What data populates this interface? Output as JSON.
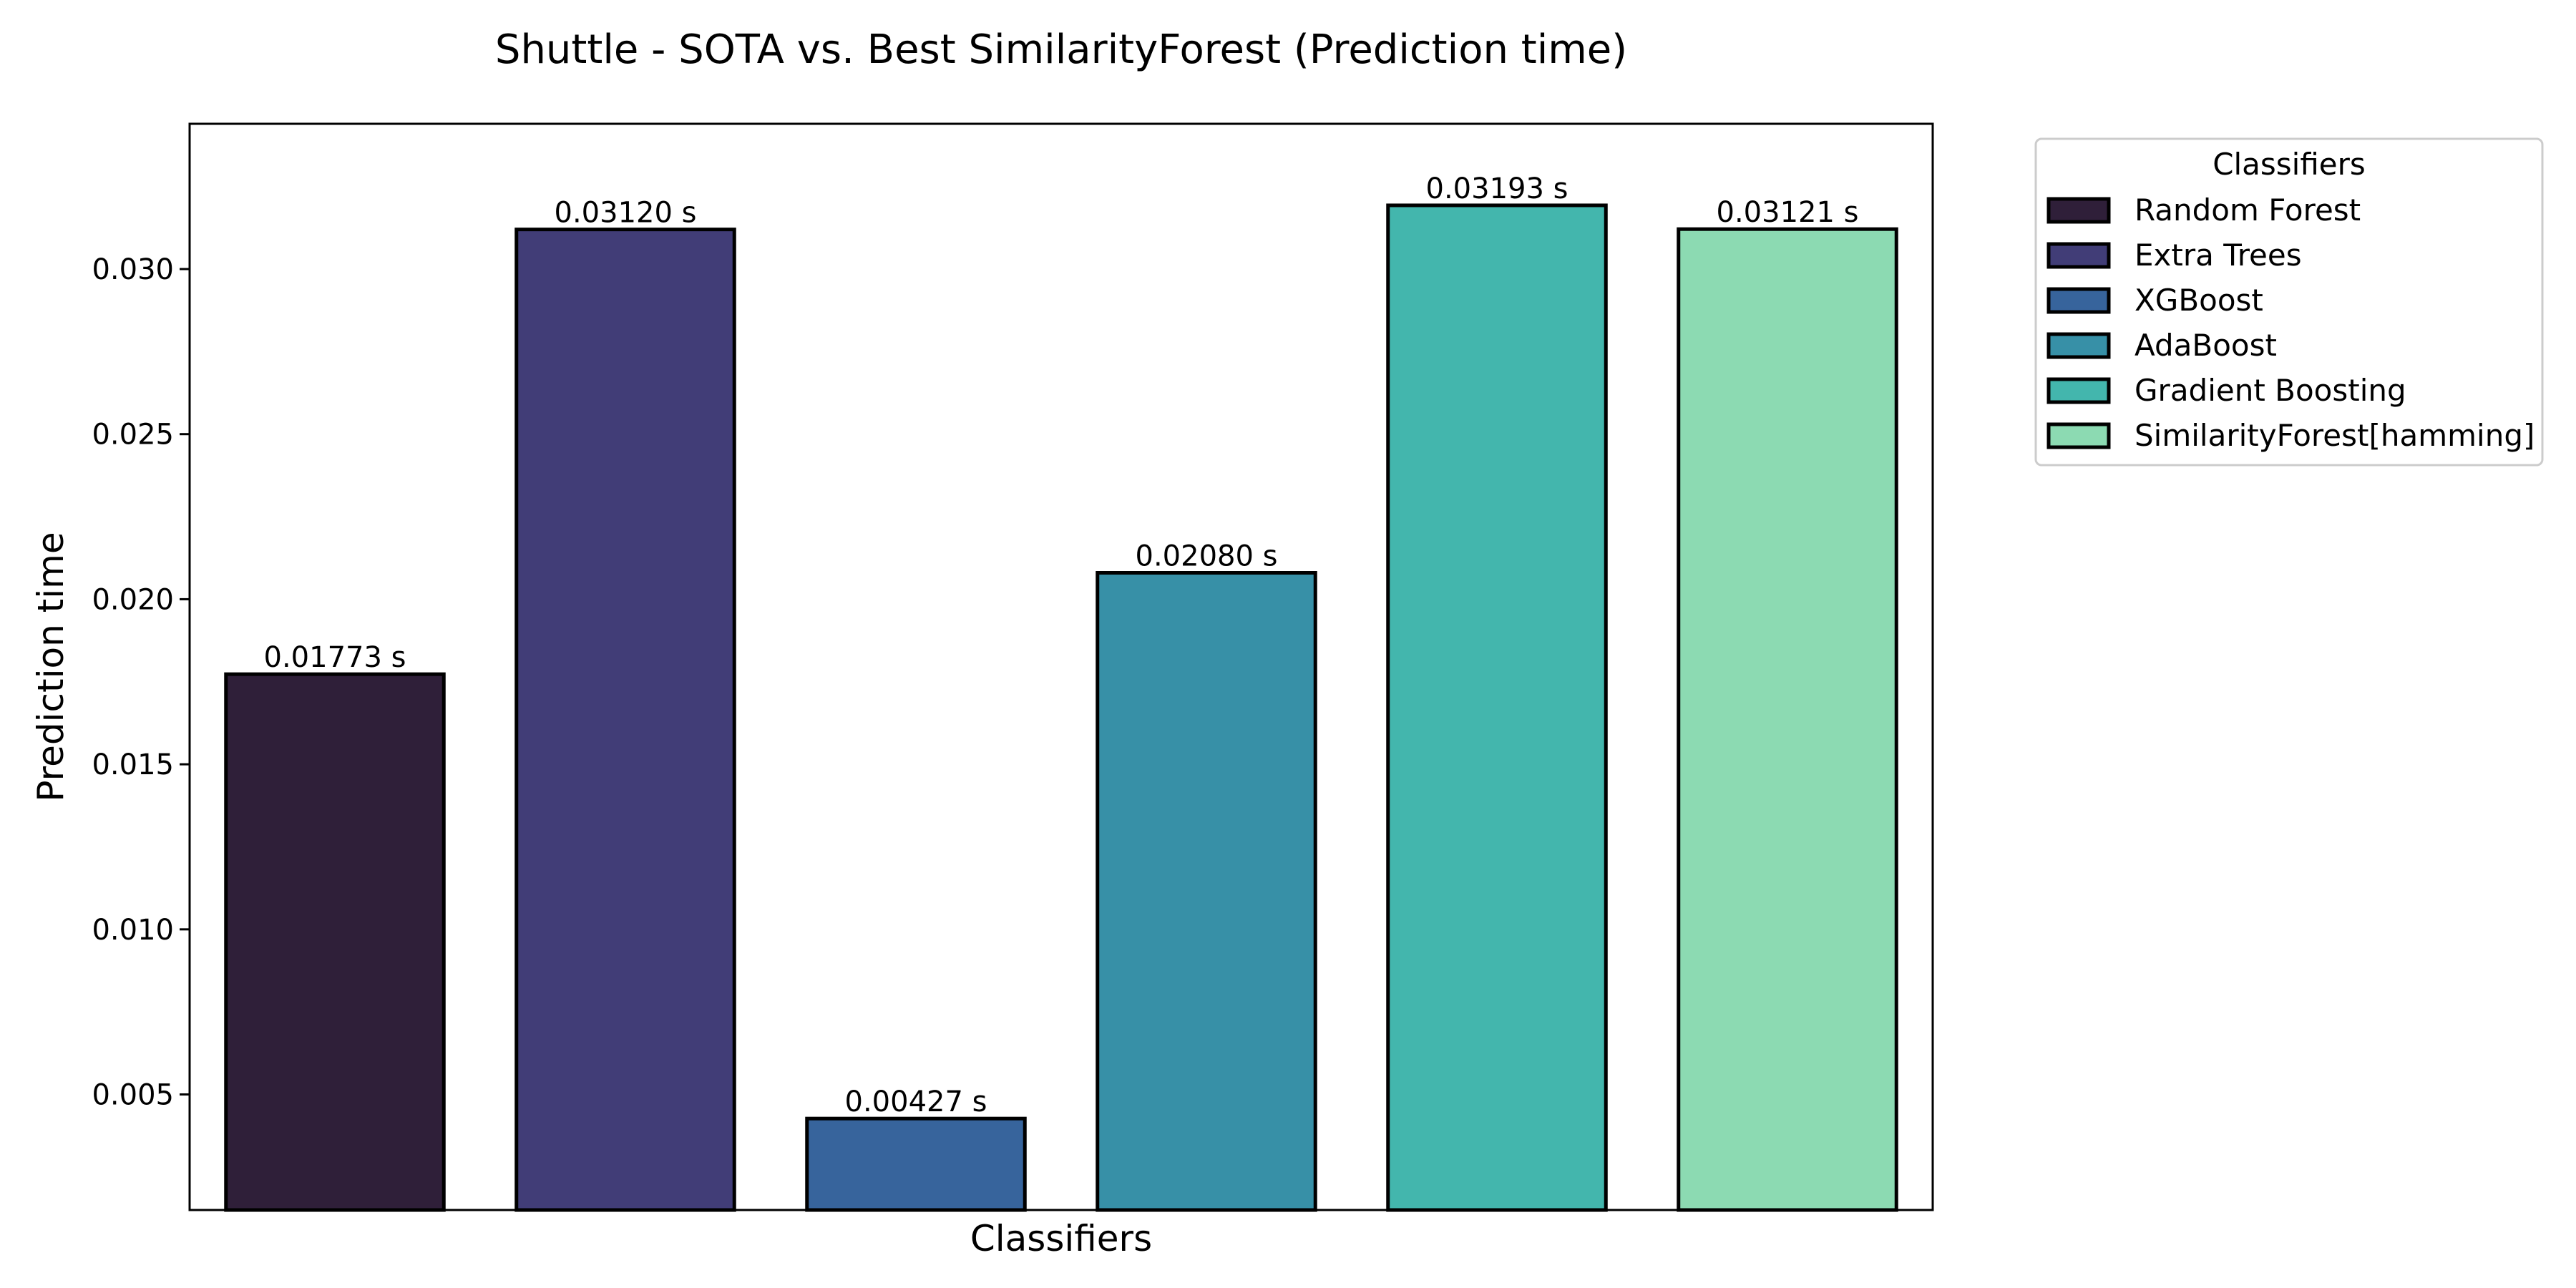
{
  "chart_data": {
    "type": "bar",
    "title": "Shuttle - SOTA vs. Best SimilarityForest (Prediction time)",
    "xlabel": "Classifiers",
    "ylabel": "Prediction time",
    "ylim": [
      0.0015,
      0.0344
    ],
    "yticks": [
      0.005,
      0.01,
      0.015,
      0.02,
      0.025,
      0.03
    ],
    "ytick_labels": [
      "0.005",
      "0.010",
      "0.015",
      "0.020",
      "0.025",
      "0.030"
    ],
    "grid": false,
    "categories": [
      "Random Forest",
      "Extra Trees",
      "XGBoost",
      "AdaBoost",
      "Gradient Boosting",
      "SimilarityForest[hamming]"
    ],
    "values": [
      0.01773,
      0.0312,
      0.00427,
      0.0208,
      0.03193,
      0.03121
    ],
    "data_labels": [
      "0.01773 s",
      "0.03120 s",
      "0.00427 s",
      "0.02080 s",
      "0.03193 s",
      "0.03121 s"
    ],
    "colors": [
      "#2f1f39",
      "#413d77",
      "#37649c",
      "#3790a7",
      "#43b6ad",
      "#8cdab2"
    ],
    "legend": {
      "title": "Classifiers",
      "placement": "outside-upper-right",
      "entries": [
        "Random Forest",
        "Extra Trees",
        "XGBoost",
        "AdaBoost",
        "Gradient Boosting",
        "SimilarityForest[hamming]"
      ]
    }
  }
}
